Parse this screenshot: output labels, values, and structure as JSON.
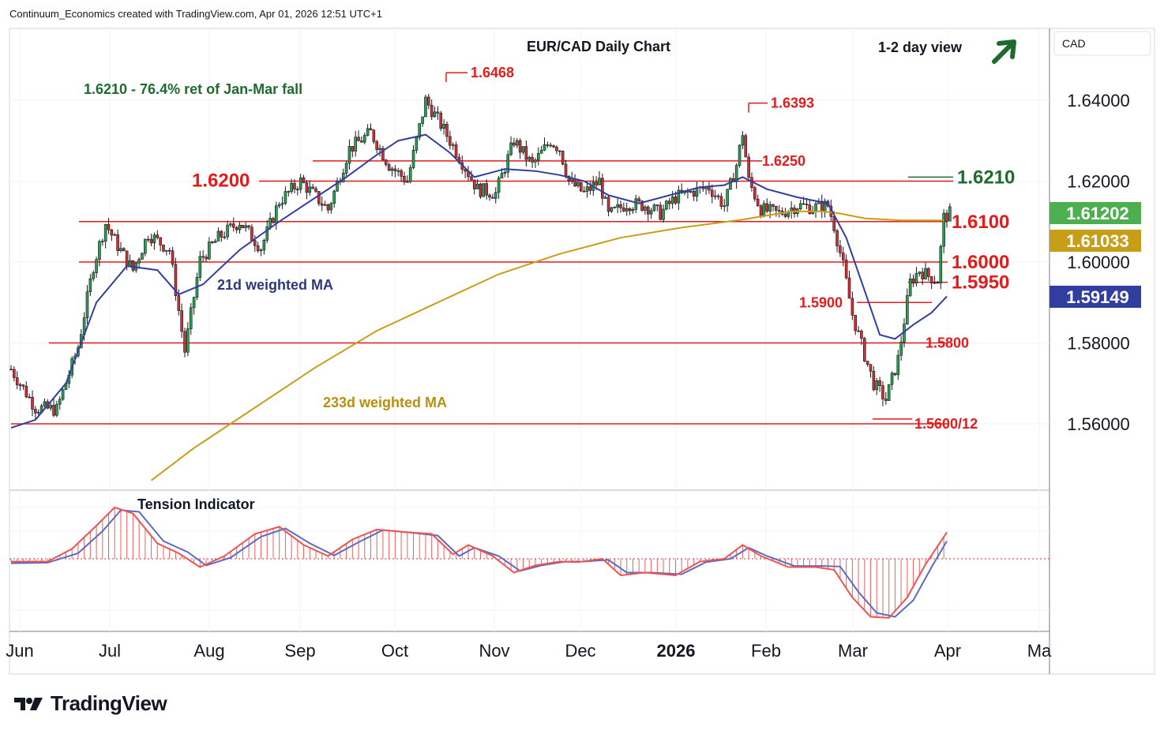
{
  "header": {
    "text": "Continuum_Economics created with TradingView.com, Apr 01, 2026 12:51 UTC+1"
  },
  "logo": {
    "text": "TradingView",
    "icon": "tradingview-logo-icon"
  },
  "chart_data": {
    "type": "candlestick",
    "title": "EUR/CAD Daily Chart",
    "view_label": "1-2 day view",
    "view_arrow": "up-arrow",
    "currency": "CAD",
    "note": "1.6210 - 76.4% ret of Jan-Mar fall",
    "y_axis": {
      "ticks": [
        "1.64000",
        "1.62000",
        "1.60000",
        "1.58000",
        "1.56000"
      ],
      "range": [
        1.548,
        1.6675
      ]
    },
    "x_axis": {
      "labels": [
        "Jun",
        "Jul",
        "Aug",
        "Sep",
        "Oct",
        "Nov",
        "Dec",
        "2026",
        "Feb",
        "Mar",
        "Apr",
        "Ma"
      ]
    },
    "price_tags": [
      {
        "text": "1.61202",
        "value": 1.61202,
        "bg": "#4caf50"
      },
      {
        "text": "1.61033",
        "value": 1.61033,
        "bg": "#c89d18"
      },
      {
        "text": "1.59149",
        "value": 1.59149,
        "bg": "#303f9f"
      }
    ],
    "levels": [
      {
        "label": "1.6210",
        "value": 1.621,
        "color": "#1e6b2e"
      },
      {
        "label": "1.6200",
        "value": 1.62,
        "color": "#e21b1b"
      },
      {
        "label": "1.6100",
        "value": 1.61,
        "color": "#e21b1b"
      },
      {
        "label": "1.6000",
        "value": 1.6,
        "color": "#e21b1b"
      },
      {
        "label": "1.5950",
        "value": 1.595,
        "color": "#e21b1b"
      },
      {
        "label": "1.5900",
        "value": 1.59,
        "color": "#e21b1b"
      },
      {
        "label": "1.5800",
        "value": 1.58,
        "color": "#e21b1b"
      },
      {
        "label": "1.5600/12",
        "value": 1.56,
        "color": "#e21b1b"
      },
      {
        "label": "1.6250",
        "value": 1.625,
        "color": "#e21b1b"
      },
      {
        "label": "1.6468",
        "value": 1.6468,
        "color": "#e21b1b"
      },
      {
        "label": "1.6393",
        "value": 1.6393,
        "color": "#e21b1b"
      }
    ],
    "ma_labels": {
      "ma21": "21d weighted MA",
      "ma233": "233d weighted MA"
    },
    "close_path": [
      [
        0,
        1.5735
      ],
      [
        8,
        1.564
      ],
      [
        15,
        1.5635
      ],
      [
        22,
        1.579
      ],
      [
        27,
        1.599
      ],
      [
        31,
        1.6095
      ],
      [
        35,
        1.604
      ],
      [
        40,
        1.598
      ],
      [
        45,
        1.607
      ],
      [
        52,
        1.603
      ],
      [
        57,
        1.578
      ],
      [
        62,
        1.6005
      ],
      [
        68,
        1.606
      ],
      [
        75,
        1.61
      ],
      [
        82,
        1.6035
      ],
      [
        88,
        1.615
      ],
      [
        95,
        1.62
      ],
      [
        104,
        1.613
      ],
      [
        111,
        1.628
      ],
      [
        118,
        1.632
      ],
      [
        124,
        1.624
      ],
      [
        130,
        1.62
      ],
      [
        136,
        1.64
      ],
      [
        141,
        1.634
      ],
      [
        147,
        1.626
      ],
      [
        153,
        1.618
      ],
      [
        159,
        1.617
      ],
      [
        165,
        1.63
      ],
      [
        171,
        1.624
      ],
      [
        177,
        1.63
      ],
      [
        180,
        1.628
      ],
      [
        183,
        1.62
      ],
      [
        188,
        1.617
      ],
      [
        193,
        1.62
      ],
      [
        196,
        1.6115
      ],
      [
        202,
        1.6145
      ],
      [
        208,
        1.614
      ],
      [
        213,
        1.612
      ],
      [
        218,
        1.616
      ],
      [
        224,
        1.6175
      ],
      [
        229,
        1.6185
      ],
      [
        234,
        1.614
      ],
      [
        238,
        1.624
      ],
      [
        240,
        1.632
      ],
      [
        242,
        1.62
      ],
      [
        246,
        1.613
      ],
      [
        252,
        1.612
      ],
      [
        258,
        1.614
      ],
      [
        263,
        1.6135
      ],
      [
        268,
        1.614
      ],
      [
        270,
        1.609
      ],
      [
        273,
        1.599
      ],
      [
        276,
        1.587
      ],
      [
        280,
        1.577
      ],
      [
        283,
        1.57
      ],
      [
        287,
        1.566
      ],
      [
        291,
        1.576
      ],
      [
        295,
        1.595
      ],
      [
        298,
        1.598
      ],
      [
        301,
        1.5965
      ],
      [
        304,
        1.5955
      ],
      [
        306,
        1.611
      ],
      [
        308,
        1.612
      ]
    ],
    "ma21_path": [
      [
        0,
        1.559
      ],
      [
        8,
        1.561
      ],
      [
        18,
        1.57
      ],
      [
        28,
        1.59
      ],
      [
        38,
        1.599
      ],
      [
        48,
        1.598
      ],
      [
        55,
        1.592
      ],
      [
        63,
        1.5945
      ],
      [
        75,
        1.603
      ],
      [
        88,
        1.61
      ],
      [
        100,
        1.616
      ],
      [
        110,
        1.621
      ],
      [
        120,
        1.6265
      ],
      [
        127,
        1.63
      ],
      [
        136,
        1.6315
      ],
      [
        144,
        1.627
      ],
      [
        152,
        1.621
      ],
      [
        162,
        1.623
      ],
      [
        172,
        1.6225
      ],
      [
        180,
        1.6215
      ],
      [
        188,
        1.62
      ],
      [
        196,
        1.6165
      ],
      [
        206,
        1.6145
      ],
      [
        216,
        1.6165
      ],
      [
        226,
        1.6185
      ],
      [
        234,
        1.619
      ],
      [
        240,
        1.621
      ],
      [
        248,
        1.618
      ],
      [
        258,
        1.616
      ],
      [
        268,
        1.6145
      ],
      [
        274,
        1.606
      ],
      [
        280,
        1.593
      ],
      [
        285,
        1.582
      ],
      [
        290,
        1.581
      ],
      [
        296,
        1.5845
      ],
      [
        302,
        1.5875
      ],
      [
        307,
        1.5915
      ]
    ],
    "ma233_path": [
      [
        46,
        1.546
      ],
      [
        60,
        1.554
      ],
      [
        80,
        1.564
      ],
      [
        100,
        1.574
      ],
      [
        120,
        1.583
      ],
      [
        140,
        1.59
      ],
      [
        160,
        1.597
      ],
      [
        180,
        1.602
      ],
      [
        200,
        1.606
      ],
      [
        220,
        1.6085
      ],
      [
        240,
        1.6105
      ],
      [
        256,
        1.6125
      ],
      [
        266,
        1.6125
      ],
      [
        272,
        1.612
      ],
      [
        280,
        1.6108
      ],
      [
        292,
        1.6103
      ],
      [
        306,
        1.6103
      ]
    ],
    "tension_indicator": {
      "title": "Tension Indicator",
      "fast_path": [
        [
          0,
          -0.05
        ],
        [
          12,
          -0.05
        ],
        [
          20,
          0.18
        ],
        [
          28,
          0.6
        ],
        [
          34,
          0.93
        ],
        [
          40,
          0.82
        ],
        [
          48,
          0.28
        ],
        [
          55,
          0.1
        ],
        [
          62,
          -0.15
        ],
        [
          70,
          0.05
        ],
        [
          80,
          0.45
        ],
        [
          88,
          0.58
        ],
        [
          96,
          0.25
        ],
        [
          104,
          0.05
        ],
        [
          112,
          0.35
        ],
        [
          120,
          0.53
        ],
        [
          130,
          0.48
        ],
        [
          138,
          0.45
        ],
        [
          145,
          0.08
        ],
        [
          150,
          0.25
        ],
        [
          158,
          0.05
        ],
        [
          165,
          -0.25
        ],
        [
          172,
          -0.12
        ],
        [
          180,
          -0.05
        ],
        [
          186,
          -0.06
        ],
        [
          194,
          0.0
        ],
        [
          200,
          -0.3
        ],
        [
          208,
          -0.25
        ],
        [
          218,
          -0.3
        ],
        [
          226,
          -0.05
        ],
        [
          234,
          0.0
        ],
        [
          240,
          0.25
        ],
        [
          246,
          0.05
        ],
        [
          255,
          -0.15
        ],
        [
          264,
          -0.15
        ],
        [
          270,
          -0.2
        ],
        [
          276,
          -0.7
        ],
        [
          282,
          -1.05
        ],
        [
          288,
          -1.07
        ],
        [
          294,
          -0.7
        ],
        [
          300,
          -0.1
        ],
        [
          307,
          0.48
        ]
      ],
      "slow_path": [
        [
          0,
          -0.08
        ],
        [
          12,
          -0.07
        ],
        [
          22,
          0.1
        ],
        [
          30,
          0.5
        ],
        [
          36,
          0.88
        ],
        [
          42,
          0.85
        ],
        [
          50,
          0.32
        ],
        [
          58,
          0.12
        ],
        [
          64,
          -0.12
        ],
        [
          72,
          0.02
        ],
        [
          82,
          0.4
        ],
        [
          90,
          0.55
        ],
        [
          98,
          0.28
        ],
        [
          106,
          0.06
        ],
        [
          114,
          0.3
        ],
        [
          122,
          0.52
        ],
        [
          132,
          0.47
        ],
        [
          140,
          0.42
        ],
        [
          147,
          0.05
        ],
        [
          152,
          0.2
        ],
        [
          160,
          0.05
        ],
        [
          167,
          -0.22
        ],
        [
          174,
          -0.12
        ],
        [
          182,
          -0.05
        ],
        [
          188,
          -0.05
        ],
        [
          196,
          -0.02
        ],
        [
          202,
          -0.25
        ],
        [
          210,
          -0.25
        ],
        [
          220,
          -0.28
        ],
        [
          228,
          -0.06
        ],
        [
          236,
          0.0
        ],
        [
          242,
          0.2
        ],
        [
          248,
          0.05
        ],
        [
          257,
          -0.13
        ],
        [
          266,
          -0.13
        ],
        [
          272,
          -0.14
        ],
        [
          278,
          -0.6
        ],
        [
          284,
          -0.98
        ],
        [
          290,
          -1.05
        ],
        [
          296,
          -0.75
        ],
        [
          302,
          -0.15
        ],
        [
          307,
          0.32
        ]
      ]
    }
  }
}
